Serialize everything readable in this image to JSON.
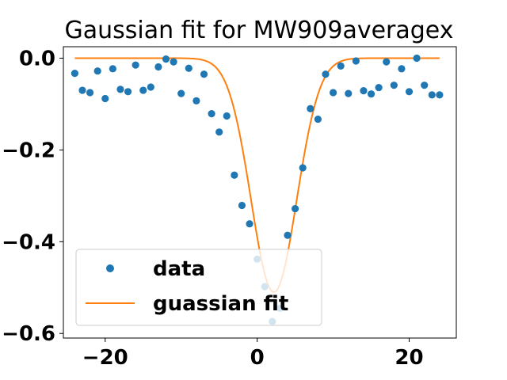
{
  "chart_data": {
    "type": "scatter",
    "title": "Gaussian fit for MW909averagex",
    "xlabel": "",
    "ylabel": "",
    "xlim": [
      -25.5,
      26.2
    ],
    "ylim": [
      -0.61,
      0.025
    ],
    "x_ticks": [
      -20,
      0,
      20
    ],
    "x_tick_labels": [
      "−20",
      "0",
      "20"
    ],
    "y_ticks": [
      0.0,
      -0.2,
      -0.4,
      -0.6
    ],
    "y_tick_labels": [
      "0.0",
      "−0.2",
      "−0.4",
      "−0.6"
    ],
    "grid": false,
    "legend_position": "lower-left",
    "series": [
      {
        "name": "data",
        "kind": "scatter",
        "color": "#1f77b4",
        "x": [
          -24,
          -23,
          -22,
          -21,
          -20,
          -19,
          -18,
          -17,
          -16,
          -15,
          -14,
          -13,
          -12,
          -11,
          -10,
          -9,
          -8,
          -7,
          -6,
          -5,
          -4,
          -3,
          -2,
          -1,
          0,
          1,
          2,
          3,
          4,
          5,
          6,
          7,
          8,
          9,
          10,
          11,
          12,
          13,
          14,
          15,
          16,
          17,
          18,
          19,
          20,
          21,
          22,
          23,
          24
        ],
        "y": [
          -0.033,
          -0.07,
          -0.075,
          -0.028,
          -0.088,
          -0.023,
          -0.068,
          -0.073,
          -0.015,
          -0.07,
          -0.063,
          -0.019,
          -0.002,
          -0.008,
          -0.077,
          -0.022,
          -0.093,
          -0.035,
          -0.121,
          -0.161,
          -0.126,
          -0.255,
          -0.321,
          -0.361,
          -0.438,
          -0.498,
          -0.574,
          -0.545,
          -0.386,
          -0.328,
          -0.239,
          -0.11,
          -0.133,
          -0.035,
          -0.075,
          -0.017,
          -0.077,
          -0.006,
          -0.071,
          -0.078,
          -0.064,
          -0.008,
          -0.059,
          -0.023,
          -0.073,
          0.0,
          -0.059,
          -0.08,
          -0.08
        ]
      },
      {
        "name": "guassian fit",
        "kind": "line",
        "color": "#ff7f0e",
        "mu": 2.2,
        "sigma": 3.0,
        "amplitude": -0.51,
        "x_range": [
          -24,
          24
        ]
      }
    ]
  }
}
